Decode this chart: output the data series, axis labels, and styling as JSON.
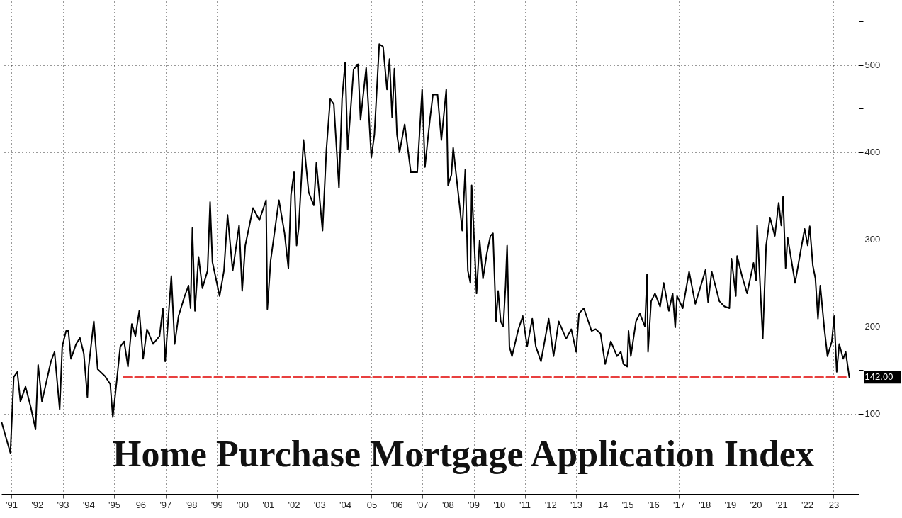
{
  "chart_data": {
    "type": "line",
    "title": "Home Purchase Mortgage Application Index",
    "xlim": [
      1990.6,
      2024.0
    ],
    "ylim": [
      8,
      573
    ],
    "xticks": [
      {
        "value": 1991,
        "label": "'91"
      },
      {
        "value": 1992,
        "label": "'92"
      },
      {
        "value": 1993,
        "label": "'93"
      },
      {
        "value": 1994,
        "label": "'94"
      },
      {
        "value": 1995,
        "label": "'95"
      },
      {
        "value": 1996,
        "label": "'96"
      },
      {
        "value": 1997,
        "label": "'97"
      },
      {
        "value": 1998,
        "label": "'98"
      },
      {
        "value": 1999,
        "label": "'99"
      },
      {
        "value": 2000,
        "label": "'00"
      },
      {
        "value": 2001,
        "label": "'01"
      },
      {
        "value": 2002,
        "label": "'02"
      },
      {
        "value": 2003,
        "label": "'03"
      },
      {
        "value": 2004,
        "label": "'04"
      },
      {
        "value": 2005,
        "label": "'05"
      },
      {
        "value": 2006,
        "label": "'06"
      },
      {
        "value": 2007,
        "label": "'07"
      },
      {
        "value": 2008,
        "label": "'08"
      },
      {
        "value": 2009,
        "label": "'09"
      },
      {
        "value": 2010,
        "label": "'10"
      },
      {
        "value": 2011,
        "label": "'11"
      },
      {
        "value": 2012,
        "label": "'12"
      },
      {
        "value": 2013,
        "label": "'13"
      },
      {
        "value": 2014,
        "label": "'14"
      },
      {
        "value": 2015,
        "label": "'15"
      },
      {
        "value": 2016,
        "label": "'16"
      },
      {
        "value": 2017,
        "label": "'17"
      },
      {
        "value": 2018,
        "label": "'18"
      },
      {
        "value": 2019,
        "label": "'19"
      },
      {
        "value": 2020,
        "label": "'20"
      },
      {
        "value": 2021,
        "label": "'21"
      },
      {
        "value": 2022,
        "label": "'22"
      },
      {
        "value": 2023,
        "label": "'23"
      }
    ],
    "yticks": [
      100,
      200,
      300,
      400,
      500,
      {
        "value": 150,
        "label": null
      },
      {
        "value": 250,
        "label": null
      },
      {
        "value": 350,
        "label": null
      },
      {
        "value": 450,
        "label": null
      },
      {
        "value": 550,
        "label": null
      }
    ],
    "grid": true,
    "series": [
      {
        "color": "#000000",
        "line_style": "solid",
        "x": [
          1990.61,
          1990.95,
          1991.08,
          1991.22,
          1991.34,
          1991.54,
          1991.74,
          1991.93,
          1992.03,
          1992.18,
          1992.53,
          1992.67,
          1992.87,
          1992.97,
          1993.12,
          1993.21,
          1993.31,
          1993.51,
          1993.66,
          1993.81,
          1993.95,
          1994.0,
          1994.2,
          1994.35,
          1994.64,
          1994.84,
          1994.94,
          1995.08,
          1995.23,
          1995.38,
          1995.53,
          1995.68,
          1995.82,
          1995.97,
          1996.12,
          1996.27,
          1996.51,
          1996.76,
          1996.89,
          1996.98,
          1997.22,
          1997.35,
          1997.5,
          1997.74,
          1997.89,
          1997.97,
          1998.04,
          1998.14,
          1998.28,
          1998.43,
          1998.63,
          1998.73,
          1998.82,
          1999.1,
          1999.27,
          1999.41,
          1999.61,
          1999.86,
          1999.98,
          2000.1,
          2000.4,
          2000.65,
          2000.91,
          2000.96,
          2001.09,
          2001.41,
          2001.63,
          2001.78,
          2001.88,
          2002.0,
          2002.1,
          2002.18,
          2002.37,
          2002.57,
          2002.77,
          2002.87,
          2003.11,
          2003.26,
          2003.41,
          2003.55,
          2003.75,
          2003.87,
          2003.99,
          2004.09,
          2004.32,
          2004.49,
          2004.59,
          2004.81,
          2005.01,
          2005.13,
          2005.32,
          2005.47,
          2005.62,
          2005.72,
          2005.82,
          2005.91,
          2006.01,
          2006.11,
          2006.31,
          2006.55,
          2006.8,
          2006.99,
          2007.1,
          2007.29,
          2007.41,
          2007.59,
          2007.74,
          2007.93,
          2008.0,
          2008.13,
          2008.2,
          2008.47,
          2008.55,
          2008.67,
          2008.77,
          2008.87,
          2008.92,
          2009.11,
          2009.23,
          2009.36,
          2009.51,
          2009.65,
          2009.75,
          2009.87,
          2009.95,
          2010.05,
          2010.15,
          2010.24,
          2010.3,
          2010.39,
          2010.49,
          2010.74,
          2010.91,
          2011.08,
          2011.28,
          2011.42,
          2011.62,
          2011.92,
          2012.11,
          2012.31,
          2012.6,
          2012.8,
          2012.99,
          2013.1,
          2013.29,
          2013.59,
          2013.75,
          2013.94,
          2014.12,
          2014.34,
          2014.58,
          2014.73,
          2014.83,
          2014.98,
          2015.03,
          2015.12,
          2015.32,
          2015.47,
          2015.67,
          2015.75,
          2015.79,
          2015.91,
          2016.06,
          2016.26,
          2016.4,
          2016.6,
          2016.75,
          2016.85,
          2016.92,
          2017.14,
          2017.39,
          2017.63,
          2017.88,
          2018.03,
          2018.13,
          2018.27,
          2018.57,
          2018.77,
          2018.96,
          2019.04,
          2019.21,
          2019.26,
          2019.45,
          2019.65,
          2019.9,
          2020.0,
          2020.04,
          2020.14,
          2020.26,
          2020.39,
          2020.54,
          2020.73,
          2020.88,
          2020.98,
          2021.05,
          2021.15,
          2021.23,
          2021.52,
          2021.72,
          2021.89,
          2022.01,
          2022.09,
          2022.21,
          2022.31,
          2022.41,
          2022.5,
          2022.65,
          2022.78,
          2022.95,
          2023.04,
          2023.14,
          2023.24,
          2023.39,
          2023.49,
          2023.63
        ],
        "values": [
          90,
          55,
          142,
          148,
          114,
          131,
          108,
          82,
          156,
          114,
          160,
          171,
          105,
          177,
          195,
          195,
          163,
          180,
          187,
          169,
          119,
          154,
          206,
          151,
          143,
          134,
          96,
          134,
          177,
          183,
          154,
          203,
          189,
          218,
          163,
          197,
          180,
          189,
          221,
          160,
          258,
          180,
          212,
          235,
          247,
          221,
          313,
          218,
          280,
          244,
          264,
          343,
          274,
          235,
          264,
          328,
          264,
          316,
          241,
          293,
          336,
          322,
          345,
          220,
          276,
          345,
          307,
          267,
          351,
          377,
          293,
          313,
          414,
          354,
          339,
          388,
          310,
          403,
          461,
          455,
          359,
          461,
          503,
          403,
          495,
          501,
          437,
          497,
          394,
          420,
          524,
          521,
          472,
          507,
          440,
          496,
          420,
          400,
          432,
          377,
          377,
          472,
          383,
          437,
          466,
          466,
          414,
          472,
          362,
          374,
          405,
          333,
          310,
          380,
          264,
          250,
          362,
          238,
          299,
          255,
          284,
          304,
          307,
          206,
          241,
          206,
          200,
          247,
          293,
          177,
          166,
          197,
          212,
          177,
          209,
          177,
          160,
          209,
          166,
          206,
          186,
          197,
          171,
          215,
          221,
          195,
          197,
          192,
          157,
          183,
          166,
          171,
          157,
          154,
          195,
          166,
          206,
          215,
          200,
          260,
          171,
          229,
          238,
          223,
          250,
          218,
          238,
          199,
          235,
          221,
          263,
          226,
          250,
          265,
          228,
          263,
          229,
          223,
          221,
          278,
          235,
          281,
          258,
          238,
          273,
          253,
          316,
          258,
          186,
          293,
          325,
          304,
          342,
          316,
          349,
          267,
          302,
          250,
          284,
          312,
          293,
          315,
          270,
          255,
          209,
          247,
          200,
          166,
          183,
          212,
          148,
          180,
          163,
          171,
          142
        ]
      },
      {
        "type": "line",
        "color": "#e8403f",
        "line_style": "dashed",
        "x": [
          1995.38,
          2023.63
        ],
        "values": [
          142,
          142
        ]
      }
    ],
    "annotations": [
      {
        "text": "142.00",
        "x": 2023.63,
        "y": 142
      }
    ]
  }
}
